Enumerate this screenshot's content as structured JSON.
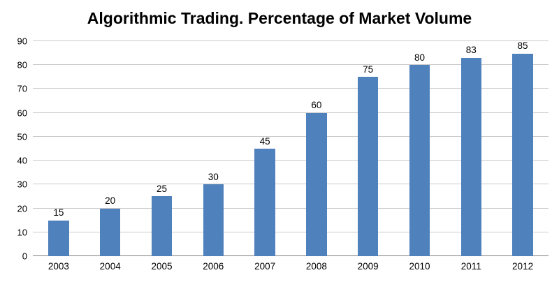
{
  "chart_data": {
    "type": "bar",
    "title": "Algorithmic Trading. Percentage of Market Volume",
    "categories": [
      "2003",
      "2004",
      "2005",
      "2006",
      "2007",
      "2008",
      "2009",
      "2010",
      "2011",
      "2012"
    ],
    "values": [
      15,
      20,
      25,
      30,
      45,
      60,
      75,
      80,
      83,
      85
    ],
    "xlabel": "",
    "ylabel": "",
    "ylim": [
      0,
      90
    ],
    "ytick_step": 10,
    "grid": true,
    "legend_position": "none",
    "data_labels": true,
    "colors": {
      "bar": "#4f81bd",
      "gridline": "#c9c9c9",
      "axis_line": "#7f7f7f",
      "text": "#000000",
      "background": "#ffffff"
    }
  }
}
